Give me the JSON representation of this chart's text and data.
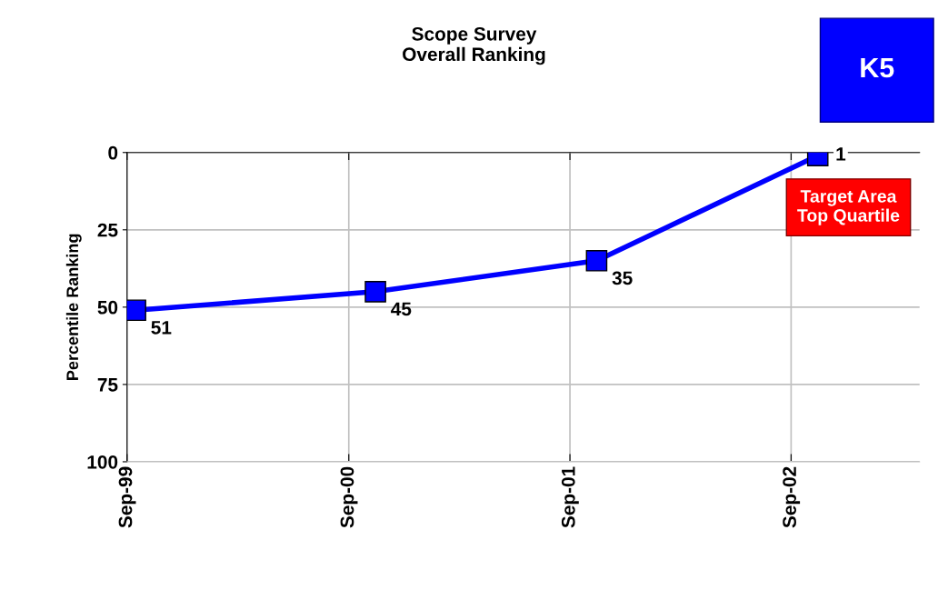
{
  "chart_data": {
    "type": "line",
    "title": "Scope Survey\nOverall Ranking",
    "ylabel": "Percentile Ranking",
    "x": [
      "1999-09-15",
      "2000-10-15",
      "2001-10-15",
      "2002-10-15"
    ],
    "series": [
      {
        "color": "#0000ff",
        "values": [
          51,
          45,
          35,
          1
        ]
      }
    ],
    "xlim": [
      "1999-09-01",
      "2003-04-01"
    ],
    "xticks": [
      {
        "value": "1999-09-01",
        "label": "Sep-99"
      },
      {
        "value": "2000-09-01",
        "label": "Sep-00"
      },
      {
        "value": "2001-09-01",
        "label": "Sep-01"
      },
      {
        "value": "2002-09-01",
        "label": "Sep-02"
      }
    ],
    "ylim": [
      100,
      0
    ],
    "yticks": [
      0,
      25,
      50,
      75,
      100
    ],
    "grid": true,
    "marker": "square",
    "line_style": "solid",
    "data_labels": true,
    "legend": false,
    "annotations": [
      "K5",
      "Target Area\nTop Quartile"
    ]
  }
}
